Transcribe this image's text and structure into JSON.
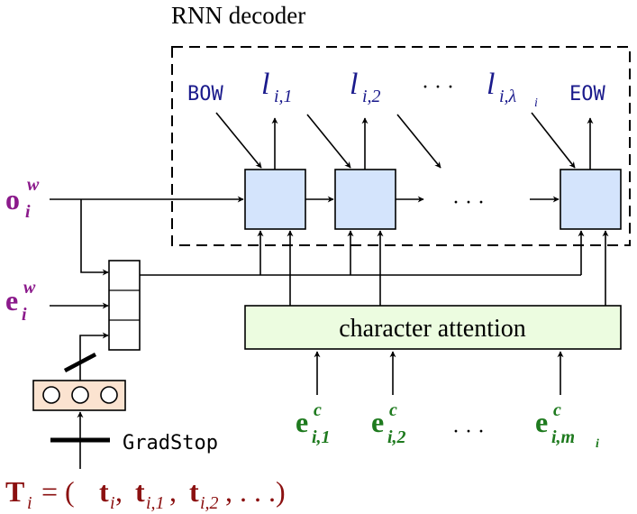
{
  "title": "RNN decoder",
  "decoder_tokens": {
    "bow": "BOW",
    "eow": "EOW",
    "l_base": "l",
    "l1_sub": "i,1",
    "l2_sub": "i,2",
    "ldots": "· · ·",
    "ll_sub": "i,λ",
    "ll_subsub": "i"
  },
  "cell_dots": "· · ·",
  "inputs": {
    "o_base": "o",
    "o_sub": "i",
    "o_sup": "w",
    "e_base": "e",
    "e_sub": "i",
    "e_sup": "w"
  },
  "attention_label": "character attention",
  "char_embeddings": {
    "base": "e",
    "sup": "c",
    "sub1": "i,1",
    "sub2": "i,2",
    "dots": "· · ·",
    "sub_last": "i,m",
    "sub_last_sub": "i"
  },
  "gradstop_label": "GradStop",
  "tag_sequence": {
    "lhs": "T",
    "lhs_sub": "i",
    "eq": "= (",
    "t1": "t",
    "t1_sub": "i",
    "sep": ", ",
    "t2": "t",
    "t2_sub": "i,1",
    "t3": "t",
    "t3_sub": "i,2",
    "tail": ", . . .)"
  },
  "colors": {
    "decoder_text": "#1a1a8c",
    "input_purple": "#8b1a8b",
    "char_green": "#1e7a1e",
    "tag_red": "#8b1010",
    "cell_fill": "#d4e4fc",
    "attention_fill": "#ecfce0",
    "tag_box_fill": "#fbe3d0"
  }
}
